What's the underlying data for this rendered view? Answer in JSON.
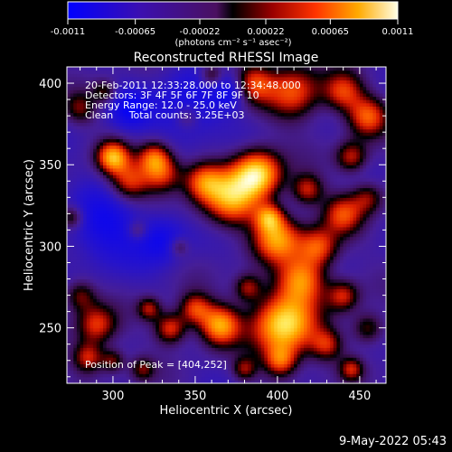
{
  "colorbar": {
    "tick_labels": [
      "-0.0011",
      "-0.00065",
      "-0.00022",
      "0.00022",
      "0.00065",
      "0.0011"
    ],
    "unit_label": "(photons cm⁻² s⁻¹ asec⁻²)",
    "range": [
      -0.0011,
      0.0011
    ]
  },
  "chart_data": {
    "type": "heatmap",
    "title": "Reconstructed RHESSI Image",
    "xlabel": "Heliocentric X (arcsec)",
    "ylabel": "Heliocentric Y (arcsec)",
    "xlim": [
      272,
      466
    ],
    "ylim": [
      216,
      410
    ],
    "x_ticks": [
      300,
      350,
      400,
      450
    ],
    "y_ticks": [
      250,
      300,
      350,
      400
    ],
    "x_tick_labels": [
      "300",
      "350",
      "400",
      "450"
    ],
    "y_tick_labels": [
      "250",
      "300",
      "350",
      "400"
    ],
    "peak_xy": [
      404,
      252
    ],
    "annotations": {
      "time": "20-Feb-2011 12:33:28.000 to 12:34:48.000",
      "detectors": "Detectors: 3F 4F 5F 6F 7F 8F 9F 10",
      "energy": "Energy Range: 12.0 - 25.0 keV",
      "clean": "Clean     Total counts: 3.25E+03",
      "peak": "Position of Peak = [404,252]"
    }
  },
  "footer": {
    "date": "9-May-2022 05:43"
  }
}
